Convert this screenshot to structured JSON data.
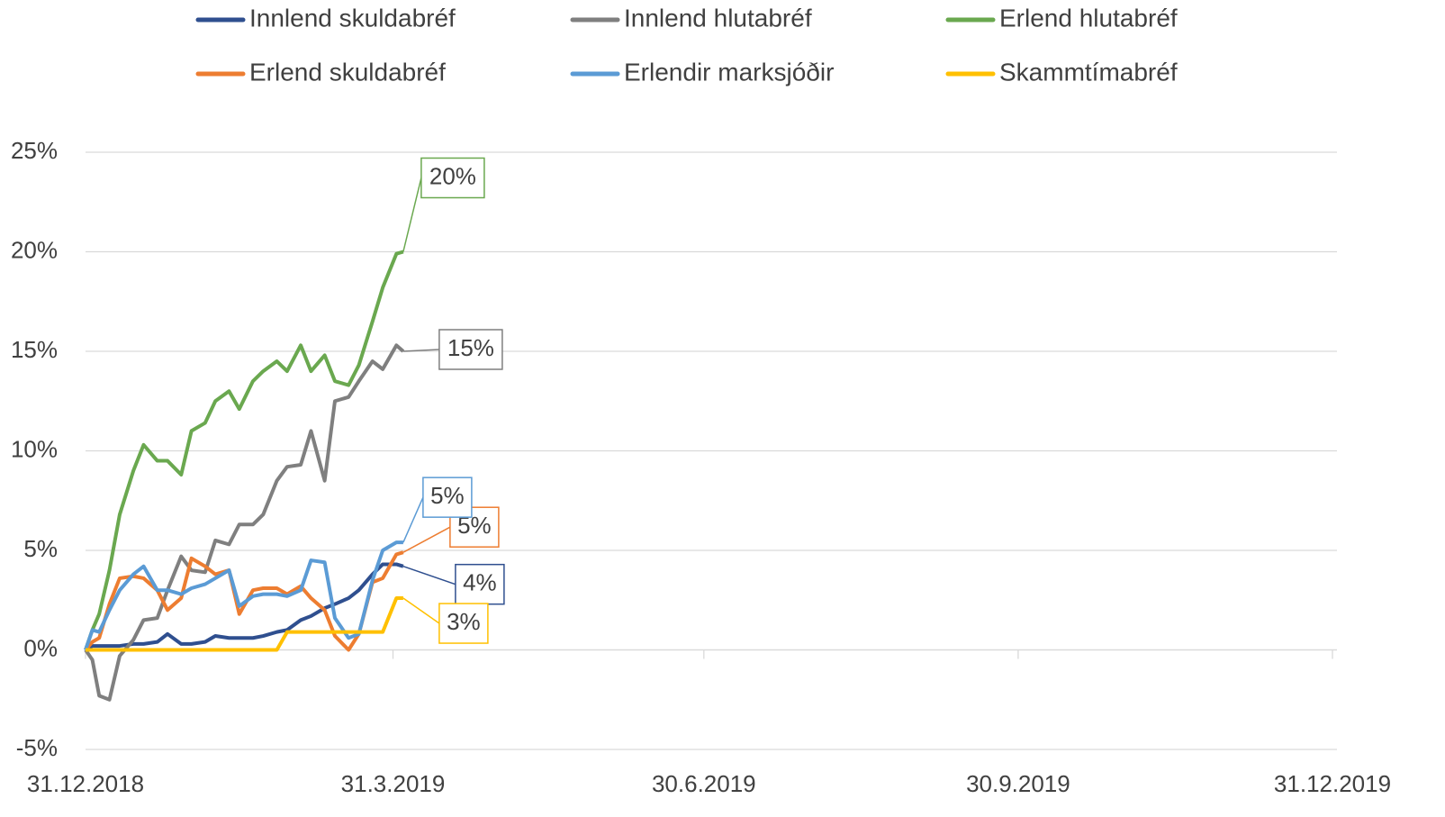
{
  "chart_data": {
    "type": "line",
    "x": [
      "31.12.2018",
      "2.1.2019",
      "4.1.2019",
      "7.1.2019",
      "10.1.2019",
      "14.1.2019",
      "17.1.2019",
      "21.1.2019",
      "24.1.2019",
      "28.1.2019",
      "31.1.2019",
      "4.2.2019",
      "7.2.2019",
      "11.2.2019",
      "14.2.2019",
      "18.2.2019",
      "21.2.2019",
      "25.2.2019",
      "28.2.2019",
      "4.3.2019",
      "7.3.2019",
      "11.3.2019",
      "14.3.2019",
      "18.3.2019",
      "21.3.2019",
      "25.3.2019",
      "28.3.2019",
      "1.4.2019",
      "3.4.2019"
    ],
    "xlim": [
      "31.12.2018",
      "31.12.2019"
    ],
    "xticks": [
      "31.12.2018",
      "31.3.2019",
      "30.6.2019",
      "30.9.2019",
      "31.12.2019"
    ],
    "ylim": [
      -5,
      25
    ],
    "yticks": [
      {
        "value": -5,
        "label": "-5%"
      },
      {
        "value": 0,
        "label": "0%"
      },
      {
        "value": 5,
        "label": "5%"
      },
      {
        "value": 10,
        "label": "10%"
      },
      {
        "value": 15,
        "label": "15%"
      },
      {
        "value": 20,
        "label": "20%"
      },
      {
        "value": 25,
        "label": "25%"
      }
    ],
    "grid": true,
    "legend": "top",
    "series": [
      {
        "name": "Innlend skuldabréf",
        "color": "#2f4f8f",
        "values": [
          0,
          0.2,
          0.2,
          0.2,
          0.2,
          0.3,
          0.3,
          0.4,
          0.8,
          0.3,
          0.3,
          0.4,
          0.7,
          0.6,
          0.6,
          0.6,
          0.7,
          0.9,
          1.0,
          1.5,
          1.7,
          2.1,
          2.3,
          2.6,
          3.0,
          3.8,
          4.3,
          4.3,
          4.2
        ],
        "value_labels": [
          null,
          null,
          null,
          null,
          null,
          null,
          null,
          null,
          null,
          null,
          null,
          null,
          null,
          null,
          null,
          null,
          null,
          null,
          null,
          null,
          null,
          null,
          null,
          null,
          null,
          null,
          null,
          null,
          "4%"
        ]
      },
      {
        "name": "Innlend hlutabréf",
        "color": "#7f7f7f",
        "values": [
          0,
          -0.5,
          -2.3,
          -2.5,
          -0.3,
          0.5,
          1.5,
          1.6,
          3.0,
          4.7,
          4.0,
          3.9,
          5.5,
          5.3,
          6.3,
          6.3,
          6.8,
          8.5,
          9.2,
          9.3,
          11.0,
          8.5,
          12.5,
          12.7,
          13.5,
          14.5,
          14.1,
          15.3,
          15.0
        ],
        "value_labels": [
          null,
          null,
          null,
          null,
          null,
          null,
          null,
          null,
          null,
          null,
          null,
          null,
          null,
          null,
          null,
          null,
          null,
          null,
          null,
          null,
          null,
          null,
          null,
          null,
          null,
          null,
          null,
          null,
          "15%"
        ]
      },
      {
        "name": "Erlend hlutabréf",
        "color": "#6aa84f",
        "values": [
          0,
          1.0,
          1.8,
          4.0,
          6.8,
          9.0,
          10.3,
          9.5,
          9.5,
          8.8,
          11.0,
          11.4,
          12.5,
          13.0,
          12.1,
          13.5,
          14.0,
          14.5,
          14.0,
          15.3,
          14.0,
          14.8,
          13.5,
          13.3,
          14.3,
          16.5,
          18.2,
          19.9,
          20.0
        ],
        "value_labels": [
          null,
          null,
          null,
          null,
          null,
          null,
          null,
          null,
          null,
          null,
          null,
          null,
          null,
          null,
          null,
          null,
          null,
          null,
          null,
          null,
          null,
          null,
          null,
          null,
          null,
          null,
          null,
          null,
          "20%"
        ]
      },
      {
        "name": "Erlend skuldabréf",
        "color": "#ed7d31",
        "values": [
          0,
          0.4,
          0.6,
          2.3,
          3.6,
          3.7,
          3.6,
          3.0,
          2.0,
          2.6,
          4.6,
          4.2,
          3.8,
          4.0,
          1.8,
          3.0,
          3.1,
          3.1,
          2.8,
          3.2,
          2.6,
          2.0,
          0.7,
          0.0,
          0.8,
          3.4,
          3.6,
          4.8,
          4.9
        ],
        "value_labels": [
          null,
          null,
          null,
          null,
          null,
          null,
          null,
          null,
          null,
          null,
          null,
          null,
          null,
          null,
          null,
          null,
          null,
          null,
          null,
          null,
          null,
          null,
          null,
          null,
          null,
          null,
          null,
          null,
          "5%"
        ]
      },
      {
        "name": "Erlendir marksjóðir",
        "color": "#5b9bd5",
        "values": [
          0,
          1.0,
          0.9,
          2.0,
          3.0,
          3.8,
          4.2,
          3.0,
          3.0,
          2.8,
          3.1,
          3.3,
          3.6,
          4.0,
          2.2,
          2.7,
          2.8,
          2.8,
          2.7,
          3.0,
          4.5,
          4.4,
          1.6,
          0.6,
          0.8,
          3.5,
          5.0,
          5.4,
          5.4
        ],
        "value_labels": [
          null,
          null,
          null,
          null,
          null,
          null,
          null,
          null,
          null,
          null,
          null,
          null,
          null,
          null,
          null,
          null,
          null,
          null,
          null,
          null,
          null,
          null,
          null,
          null,
          null,
          null,
          null,
          null,
          "5%"
        ]
      },
      {
        "name": "Skammtímabréf",
        "color": "#ffc000",
        "values": [
          0,
          0,
          0,
          0,
          0,
          0,
          0,
          0,
          0,
          0,
          0,
          0,
          0,
          0,
          0,
          0,
          0,
          0,
          0.9,
          0.9,
          0.9,
          0.9,
          0.9,
          0.9,
          0.9,
          0.9,
          0.9,
          2.6,
          2.6
        ],
        "value_labels": [
          null,
          null,
          null,
          null,
          null,
          null,
          null,
          null,
          null,
          null,
          null,
          null,
          null,
          null,
          null,
          null,
          null,
          null,
          null,
          null,
          null,
          null,
          null,
          null,
          null,
          null,
          null,
          null,
          "3%"
        ]
      }
    ]
  }
}
